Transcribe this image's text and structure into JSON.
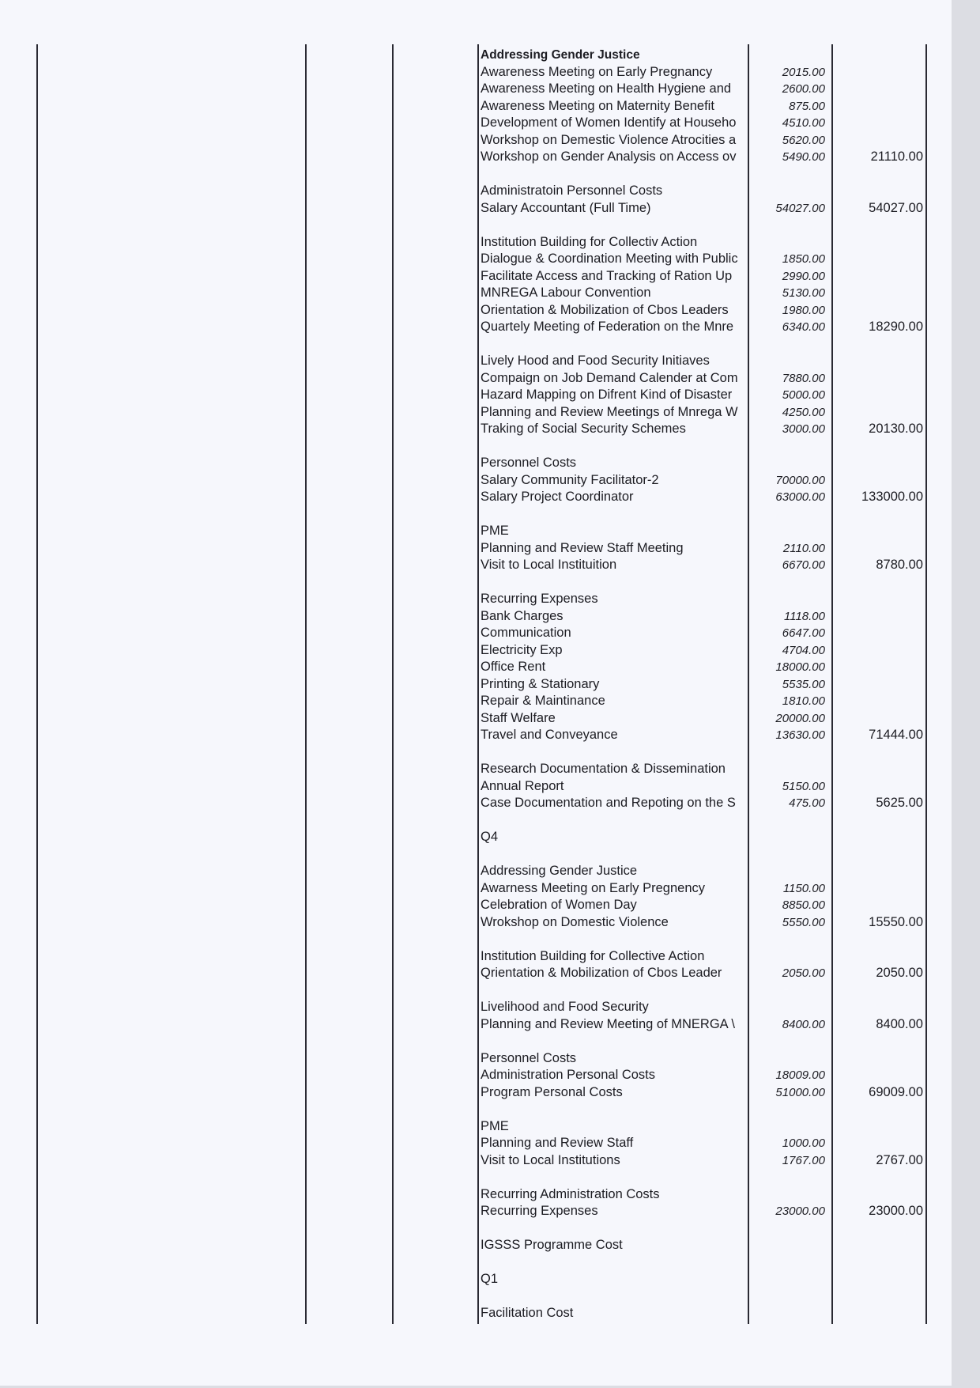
{
  "sections": [
    {
      "heading": "Addressing Gender Justice",
      "bold": true,
      "items": [
        {
          "label": "Awareness Meeting on Early Pregnancy",
          "amount": "2015.00"
        },
        {
          "label": "Awareness Meeting on Health Hygiene and",
          "amount": "2600.00"
        },
        {
          "label": "Awareness Meeting on Maternity Benefit",
          "amount": "875.00"
        },
        {
          "label": "Development of Women Identify at Househo",
          "amount": "4510.00"
        },
        {
          "label": "Workshop on Demestic Violence Atrocities a",
          "amount": "5620.00"
        },
        {
          "label": "Workshop on Gender Analysis on Access ov",
          "amount": "5490.00"
        }
      ],
      "total": "21110.00"
    },
    {
      "heading": "Administratoin Personnel Costs",
      "items": [
        {
          "label": "Salary Accountant (Full Time)",
          "amount": "54027.00"
        }
      ],
      "total": "54027.00"
    },
    {
      "heading": "Institution Building for Collectiv Action",
      "items": [
        {
          "label": "Dialogue & Coordination Meeting with Public",
          "amount": "1850.00"
        },
        {
          "label": "Facilitate Access and Tracking of Ration Up",
          "amount": "2990.00"
        },
        {
          "label": "MNREGA Labour Convention",
          "amount": "5130.00"
        },
        {
          "label": "Orientation & Mobilization of Cbos Leaders",
          "amount": "1980.00"
        },
        {
          "label": "Quartely Meeting of Federation on the Mnre",
          "amount": "6340.00"
        }
      ],
      "total": "18290.00"
    },
    {
      "heading": "Lively Hood and Food Security Initiaves",
      "items": [
        {
          "label": "Compaign on Job Demand Calender at Com",
          "amount": "7880.00"
        },
        {
          "label": "Hazard Mapping on Difrent Kind of Disaster",
          "amount": "5000.00"
        },
        {
          "label": "Planning and Review Meetings of Mnrega W",
          "amount": "4250.00"
        },
        {
          "label": "Traking of Social Security Schemes",
          "amount": "3000.00"
        }
      ],
      "total": "20130.00"
    },
    {
      "heading": "Personnel Costs",
      "items": [
        {
          "label": "Salary Community Facilitator-2",
          "amount": "70000.00"
        },
        {
          "label": "Salary Project Coordinator",
          "amount": "63000.00"
        }
      ],
      "total": "133000.00"
    },
    {
      "heading": "PME",
      "items": [
        {
          "label": "Planning and Review Staff Meeting",
          "amount": "2110.00"
        },
        {
          "label": "Visit to Local Instituition",
          "amount": "6670.00"
        }
      ],
      "total": "8780.00"
    },
    {
      "heading": "Recurring Expenses",
      "items": [
        {
          "label": "Bank Charges",
          "amount": "1118.00"
        },
        {
          "label": "Communication",
          "amount": "6647.00"
        },
        {
          "label": "Electricity Exp",
          "amount": "4704.00"
        },
        {
          "label": "Office Rent",
          "amount": "18000.00"
        },
        {
          "label": "Printing & Stationary",
          "amount": "5535.00"
        },
        {
          "label": "Repair & Maintinance",
          "amount": "1810.00"
        },
        {
          "label": "Staff Welfare",
          "amount": "20000.00"
        },
        {
          "label": "Travel and Conveyance",
          "amount": "13630.00"
        }
      ],
      "total": "71444.00"
    },
    {
      "heading": "Research Documentation & Dissemination",
      "items": [
        {
          "label": "Annual Report",
          "amount": "5150.00"
        },
        {
          "label": "Case Documentation and Repoting on the S",
          "amount": "475.00"
        }
      ],
      "total": "5625.00"
    },
    {
      "heading": "Q4",
      "items": []
    },
    {
      "heading": "Addressing Gender Justice",
      "items": [
        {
          "label": "Awarness Meeting on Early Pregnency",
          "amount": "1150.00"
        },
        {
          "label": "Celebration of Women Day",
          "amount": "8850.00"
        },
        {
          "label": "Wrokshop on Domestic Violence",
          "amount": "5550.00"
        }
      ],
      "total": "15550.00"
    },
    {
      "heading": "Institution Building for Collective Action",
      "items": [
        {
          "label": "Qrientation & Mobilization of Cbos Leader",
          "amount": "2050.00"
        }
      ],
      "total": "2050.00"
    },
    {
      "heading": "Livelihood and Food Security",
      "items": [
        {
          "label": "Planning and Review Meeting of MNERGA \\",
          "amount": "8400.00"
        }
      ],
      "total": "8400.00"
    },
    {
      "heading": "Personnel Costs",
      "items": [
        {
          "label": "Administration Personal Costs",
          "amount": "18009.00"
        },
        {
          "label": "Program Personal Costs",
          "amount": "51000.00"
        }
      ],
      "total": "69009.00"
    },
    {
      "heading": "PME",
      "items": [
        {
          "label": "Planning and Review Staff",
          "amount": "1000.00"
        },
        {
          "label": "Visit to Local Institutions",
          "amount": "1767.00"
        }
      ],
      "total": "2767.00"
    },
    {
      "heading": "Recurring Administration Costs",
      "items": [
        {
          "label": "Recurring Expenses",
          "amount": "23000.00"
        }
      ],
      "total": "23000.00"
    },
    {
      "heading": "IGSSS Programme Cost",
      "items": []
    },
    {
      "heading": "Q1",
      "items": []
    },
    {
      "heading": "Facilitation Cost",
      "items": []
    }
  ]
}
